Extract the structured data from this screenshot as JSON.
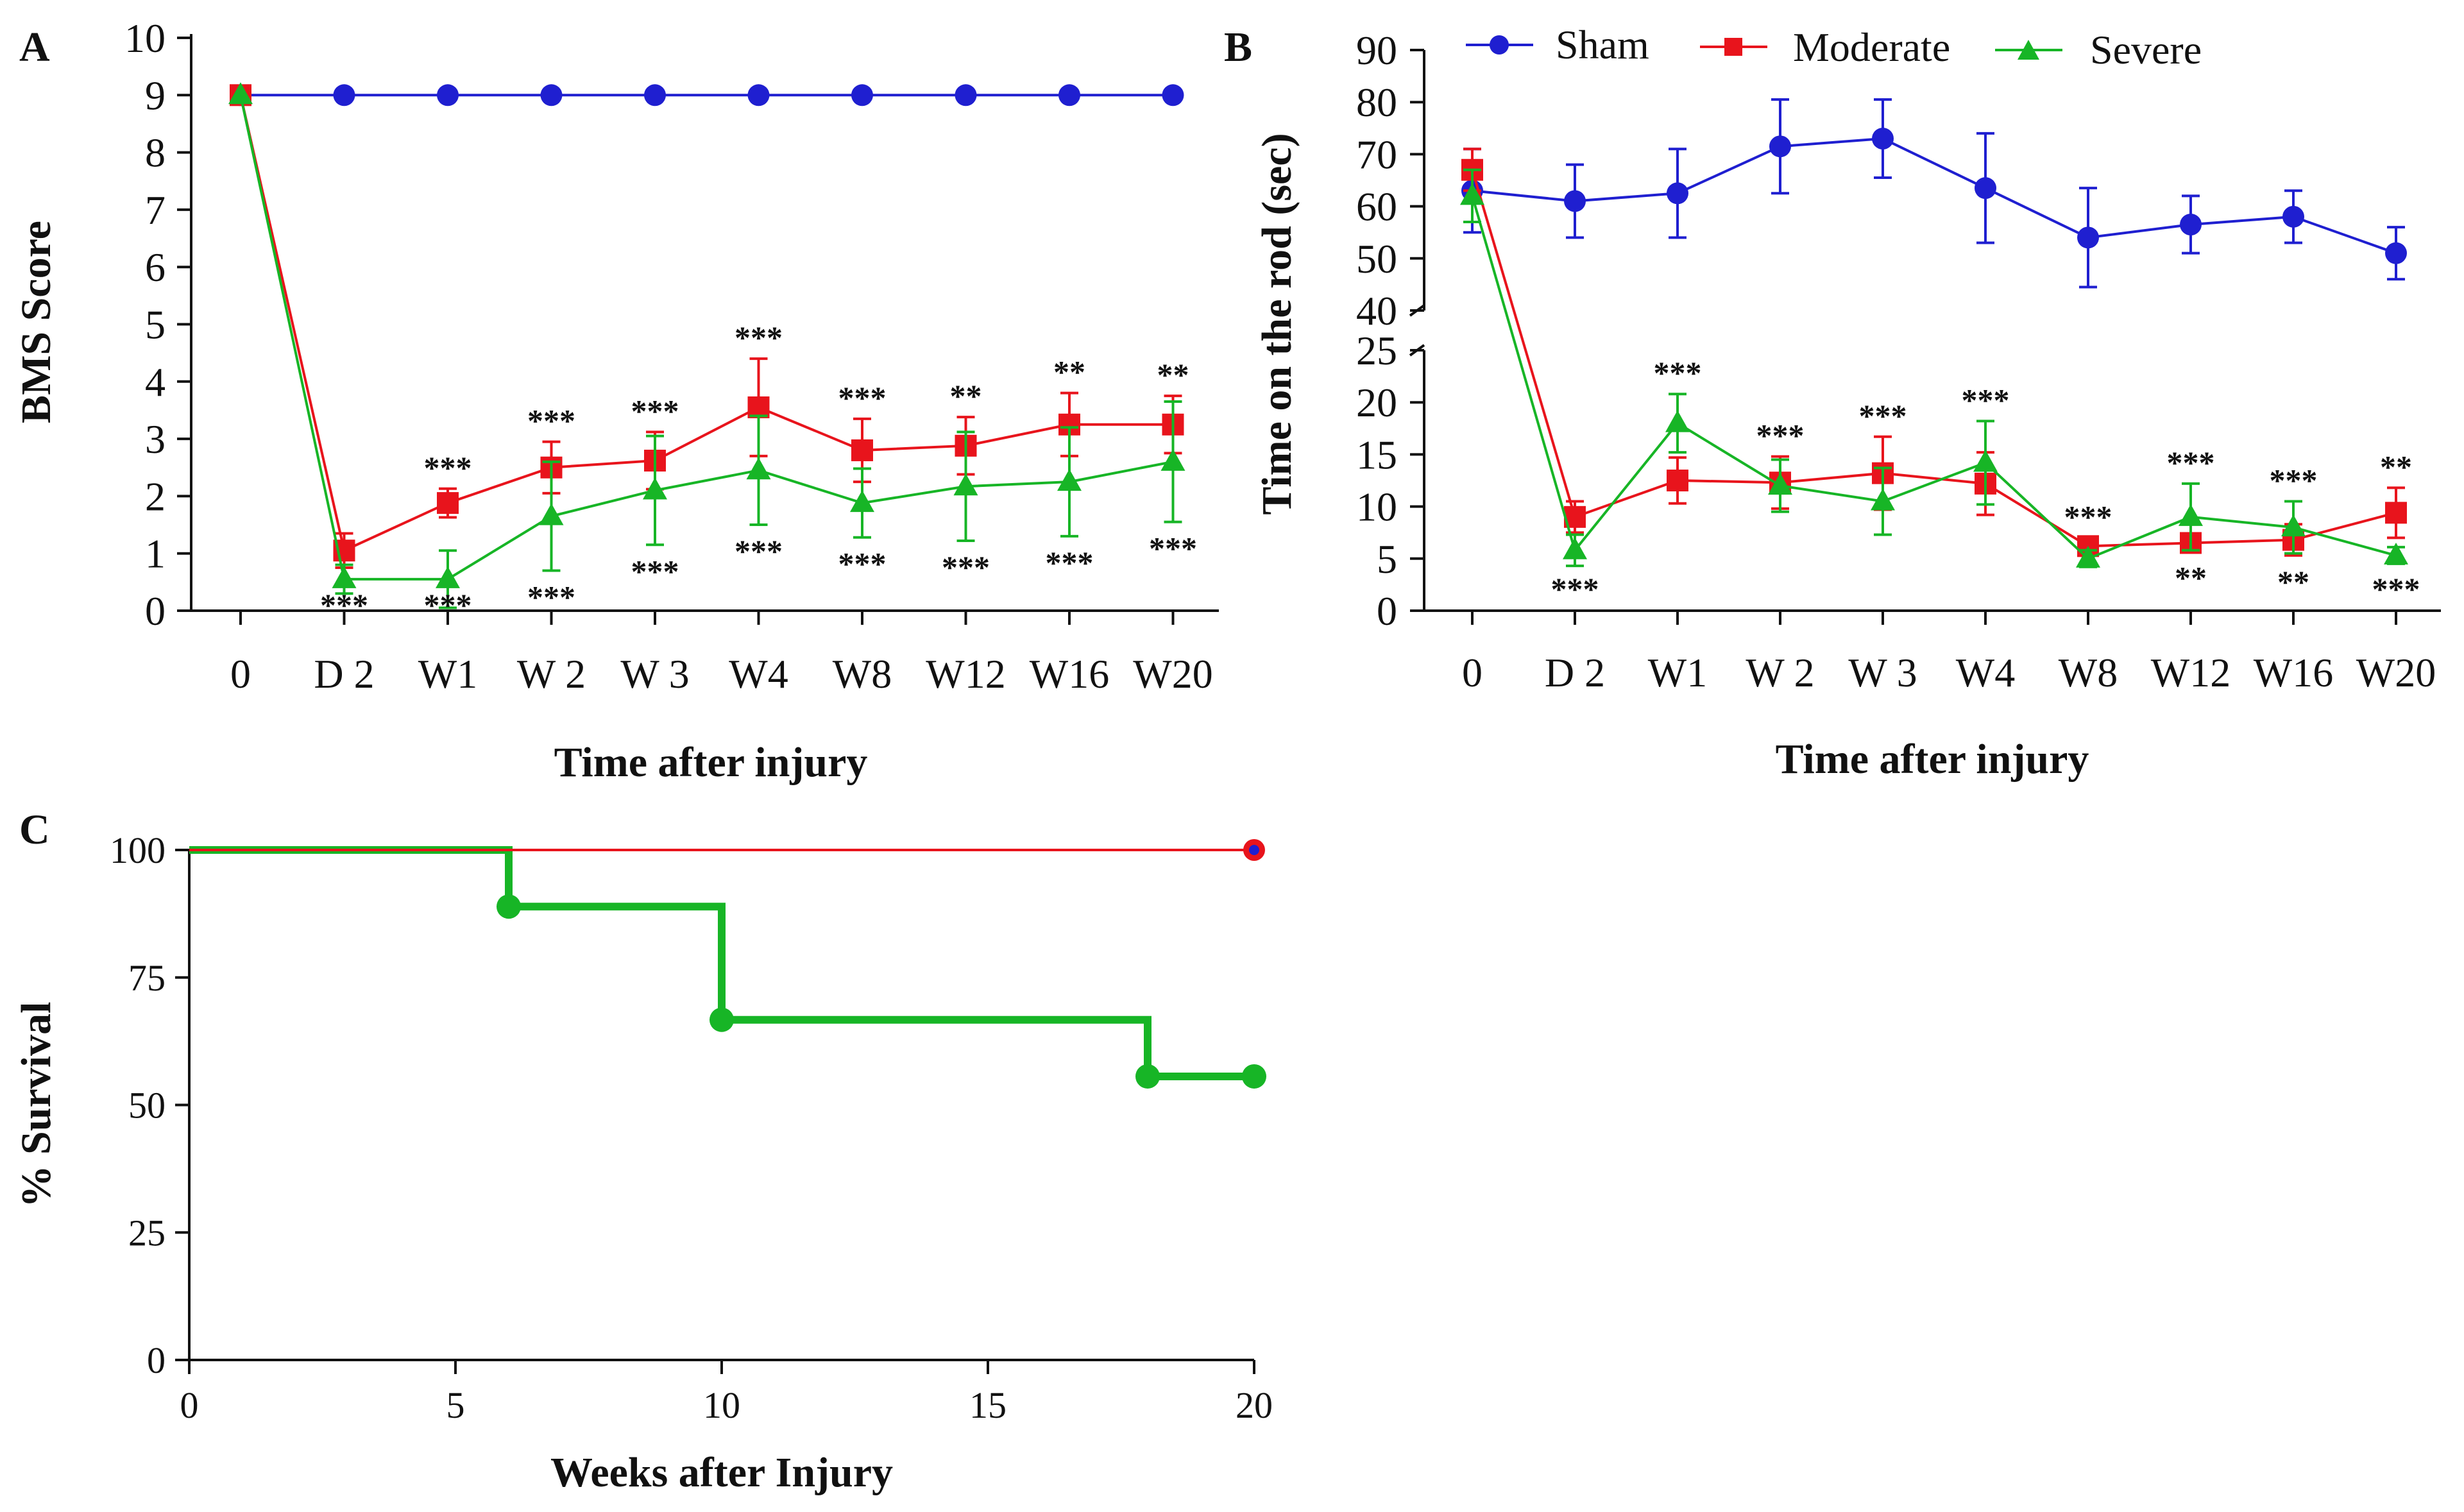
{
  "chart_data": [
    {
      "panel": "A",
      "type": "line",
      "categories": [
        "0",
        "D 2",
        "W1",
        "W 2",
        "W 3",
        "W4",
        "W8",
        "W12",
        "W16",
        "W20"
      ],
      "ylabel": "BMS Score",
      "xlabel": "Time after injury",
      "ylim": [
        0,
        10
      ],
      "yticks": [
        "0",
        "1",
        "2",
        "3",
        "4",
        "5",
        "6",
        "7",
        "8",
        "9",
        "10"
      ],
      "series": [
        {
          "name": "Sham",
          "color": "#1f1fd0",
          "marker": "circle",
          "values": [
            9,
            9,
            9,
            9,
            9,
            9,
            9,
            9,
            9,
            9
          ]
        },
        {
          "name": "Moderate",
          "color": "#e8141c",
          "marker": "square",
          "values": [
            9,
            1.05,
            1.88,
            2.5,
            2.62,
            3.55,
            2.8,
            2.88,
            3.25,
            3.25
          ],
          "errors": [
            0,
            0.3,
            0.25,
            0.45,
            0.5,
            0.85,
            0.55,
            0.5,
            0.55,
            0.5
          ]
        },
        {
          "name": "Severe",
          "color": "#17b526",
          "marker": "triangle",
          "values": [
            9,
            0.55,
            0.55,
            1.65,
            2.1,
            2.45,
            1.88,
            2.17,
            2.25,
            2.6
          ],
          "errors": [
            0,
            0.25,
            0.5,
            0.95,
            0.95,
            0.95,
            0.6,
            0.95,
            0.95,
            1.05
          ]
        }
      ],
      "significance_above": [
        "",
        "",
        "***",
        "***",
        "***",
        "***",
        "***",
        "**",
        "**",
        "**"
      ],
      "significance_below": [
        "",
        "***",
        "***",
        "***",
        "***",
        "***",
        "***",
        "***",
        "***",
        "***"
      ]
    },
    {
      "panel": "B",
      "type": "line",
      "categories": [
        "0",
        "D 2",
        "W1",
        "W 2",
        "W 3",
        "W4",
        "W8",
        "W12",
        "W16",
        "W20"
      ],
      "ylabel": "Time on the rod (sec)",
      "xlabel": "Time after injury",
      "ylim_lower": [
        0,
        25
      ],
      "ylim_upper": [
        40,
        90
      ],
      "yticks_lower": [
        "0",
        "5",
        "10",
        "15",
        "20",
        "25"
      ],
      "yticks_upper": [
        "40",
        "50",
        "60",
        "70",
        "80",
        "90"
      ],
      "legend": [
        "Sham",
        "Moderate",
        "Severe"
      ],
      "series": [
        {
          "name": "Sham",
          "color": "#1f1fd0",
          "marker": "circle",
          "values": [
            63,
            61,
            62.5,
            71.5,
            73,
            63.5,
            54,
            56.5,
            58,
            51
          ],
          "errors": [
            8,
            7,
            8.5,
            9,
            7.5,
            10.5,
            9.5,
            5.5,
            5,
            5
          ]
        },
        {
          "name": "Moderate",
          "color": "#e8141c",
          "marker": "square",
          "values": [
            67,
            9,
            12.5,
            12.3,
            13.2,
            12.2,
            6.2,
            6.5,
            6.8,
            9.4
          ],
          "errors": [
            4,
            1.5,
            2.2,
            2.5,
            3.5,
            3,
            0.8,
            0.8,
            1.5,
            2.4
          ]
        },
        {
          "name": "Severe",
          "color": "#17b526",
          "marker": "triangle",
          "values": [
            62,
            5.8,
            18,
            12,
            10.5,
            14.2,
            5,
            9,
            8,
            5.3
          ],
          "errors": [
            5,
            1.5,
            2.8,
            2.5,
            3.2,
            4,
            0.8,
            3.2,
            2.5,
            0.8
          ]
        }
      ],
      "significance_above": [
        "",
        "",
        "***",
        "***",
        "***",
        "***",
        "***",
        "***",
        "***",
        "**"
      ],
      "significance_below": [
        "",
        "***",
        "",
        "",
        "",
        "",
        "",
        "**",
        "**",
        "***"
      ]
    },
    {
      "panel": "C",
      "type": "line",
      "subtype": "survival-step",
      "ylabel": "% Survival",
      "xlabel": "Weeks after Injury",
      "xlim": [
        0,
        20
      ],
      "ylim": [
        0,
        100
      ],
      "xticks": [
        "0",
        "5",
        "10",
        "15",
        "20"
      ],
      "yticks": [
        "0",
        "25",
        "50",
        "75",
        "100"
      ],
      "series": [
        {
          "name": "Sham",
          "color": "#1f1fd0",
          "x": [
            0,
            20
          ],
          "y": [
            100,
            100
          ]
        },
        {
          "name": "Moderate",
          "color": "#e8141c",
          "x": [
            0,
            20
          ],
          "y": [
            100,
            100
          ]
        },
        {
          "name": "Severe",
          "color": "#17b526",
          "x": [
            0,
            6,
            10,
            18,
            20
          ],
          "y": [
            100,
            88.9,
            66.7,
            55.6,
            55.6
          ],
          "markers_x": [
            6,
            10,
            18,
            20
          ]
        }
      ]
    }
  ]
}
